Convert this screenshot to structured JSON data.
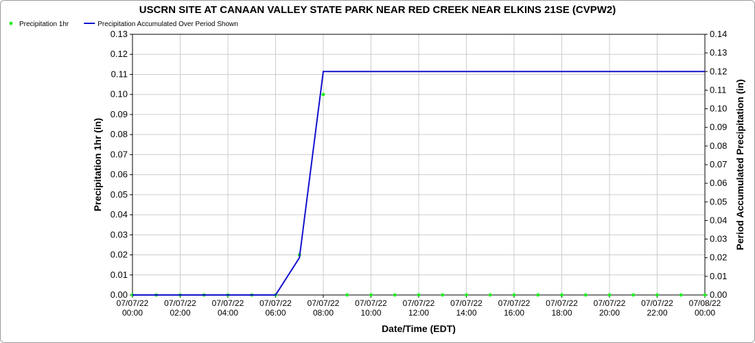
{
  "chart_data": {
    "type": "line",
    "title": "USCRN SITE AT CANAAN VALLEY STATE PARK NEAR RED CREEK NEAR ELKINS 21SE (CVPW2)",
    "x_label": "Date/Time (EDT)",
    "y_label": "Precipitation 1hr (in)",
    "y2_label": "Period Accumulated Precipitation (in)",
    "categories": [
      "07/07/22 00:00",
      null,
      "07/07/22 02:00",
      null,
      "07/07/22 04:00",
      null,
      "07/07/22 06:00",
      null,
      "07/07/22 08:00",
      null,
      "07/07/22 10:00",
      null,
      "07/07/22 12:00",
      null,
      "07/07/22 14:00",
      null,
      "07/07/22 16:00",
      null,
      "07/07/22 18:00",
      null,
      "07/07/22 20:00",
      null,
      "07/07/22 22:00",
      null,
      "07/08/22 00:00"
    ],
    "series": [
      {
        "name": "Precipitation 1hr",
        "color": "#22ee22",
        "style": "points",
        "values": [
          0,
          0,
          0,
          0,
          0,
          0,
          0,
          0.02,
          0.1,
          0,
          0,
          0,
          0,
          0,
          0,
          0,
          0,
          0,
          0,
          0,
          0,
          0,
          0,
          0,
          0
        ]
      },
      {
        "name": "Precipitation Accumulated Over Period Shown",
        "color": "#1010cc",
        "style": "line",
        "axis": "y2",
        "values": [
          0,
          0,
          0,
          0,
          0,
          0,
          0,
          0.02,
          0.12,
          0.12,
          0.12,
          0.12,
          0.12,
          0.12,
          0.12,
          0.12,
          0.12,
          0.12,
          0.12,
          0.12,
          0.12,
          0.12,
          0.12,
          0.12,
          0.12
        ]
      }
    ],
    "ylim": [
      0,
      0.13
    ],
    "yticks": [
      {
        "value": 0,
        "label": "0.00"
      },
      {
        "value": 0.01,
        "label": "0.01"
      },
      {
        "value": 0.02,
        "label": "0.02"
      },
      {
        "value": 0.03,
        "label": "0.03"
      },
      {
        "value": 0.04,
        "label": "0.04"
      },
      {
        "value": 0.05,
        "label": "0.05"
      },
      {
        "value": 0.06,
        "label": "0.06"
      },
      {
        "value": 0.07,
        "label": "0.07"
      },
      {
        "value": 0.08,
        "label": "0.08"
      },
      {
        "value": 0.09,
        "label": "0.09"
      },
      {
        "value": 0.1,
        "label": "0.10"
      },
      {
        "value": 0.11,
        "label": "0.11"
      },
      {
        "value": 0.12,
        "label": "0.12"
      },
      {
        "value": 0.13,
        "label": "0.13"
      }
    ],
    "y2lim": [
      0,
      0.14
    ],
    "y2ticks": [
      {
        "value": 0,
        "label": "0.00"
      },
      {
        "value": 0.01,
        "label": "0.01"
      },
      {
        "value": 0.02,
        "label": "0.02"
      },
      {
        "value": 0.03,
        "label": "0.03"
      },
      {
        "value": 0.04,
        "label": "0.04"
      },
      {
        "value": 0.05,
        "label": "0.05"
      },
      {
        "value": 0.06,
        "label": "0.06"
      },
      {
        "value": 0.07,
        "label": "0.07"
      },
      {
        "value": 0.08,
        "label": "0.08"
      },
      {
        "value": 0.09,
        "label": "0.09"
      },
      {
        "value": 0.1,
        "label": "0.10"
      },
      {
        "value": 0.11,
        "label": "0.11"
      },
      {
        "value": 0.12,
        "label": "0.12"
      },
      {
        "value": 0.13,
        "label": "0.13"
      },
      {
        "value": 0.14,
        "label": "0.14"
      }
    ],
    "grid": true
  }
}
